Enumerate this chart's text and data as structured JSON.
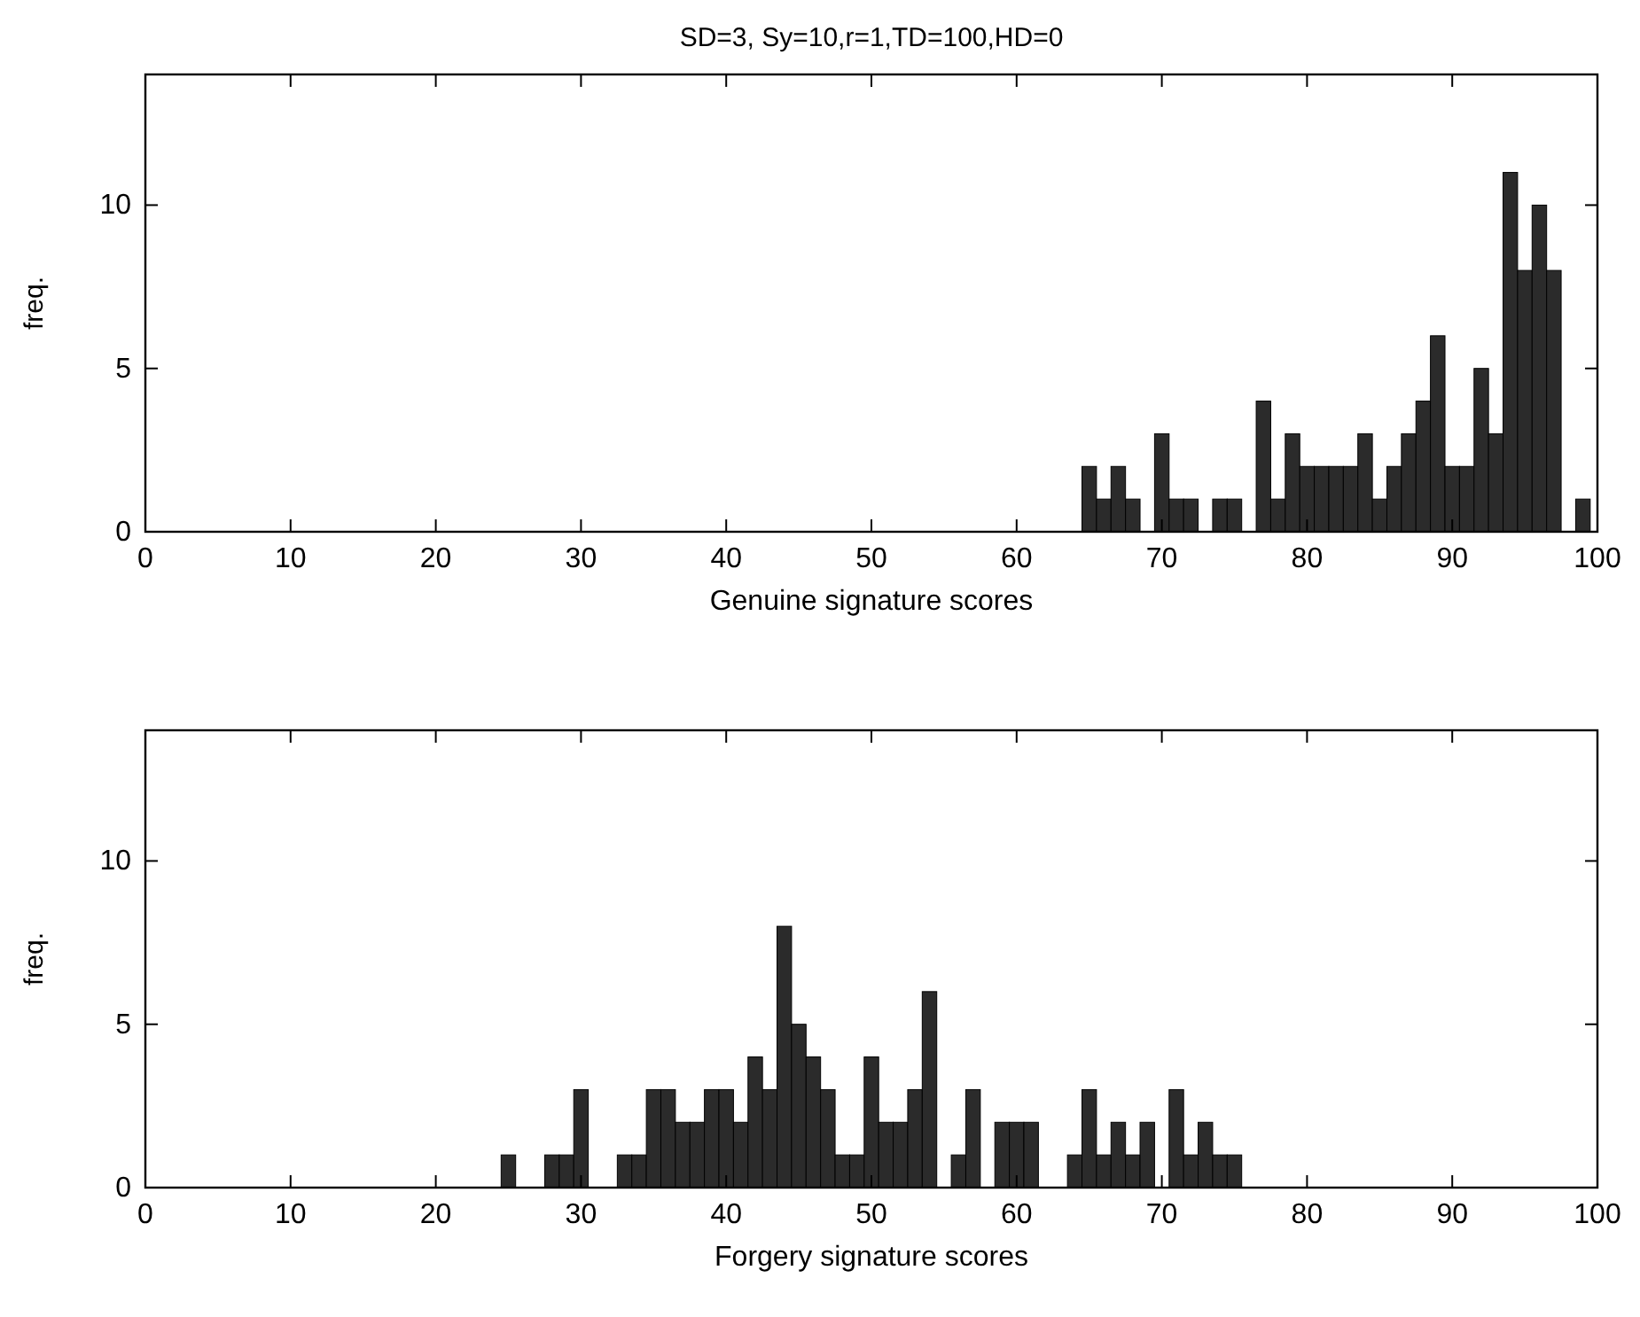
{
  "chart_data": [
    {
      "type": "histogram",
      "title": "SD=3, Sy=10,r=1,TD=100,HD=0",
      "xlabel": "Genuine signature scores",
      "ylabel": "freq.",
      "color": "#2b2b2b",
      "xlim": [
        0,
        100
      ],
      "ylim": [
        0,
        14
      ],
      "xticks": [
        0,
        10,
        20,
        30,
        40,
        50,
        60,
        70,
        80,
        90,
        100
      ],
      "yticks": [
        0,
        5,
        10
      ],
      "grid": false,
      "bins": [
        64.5,
        65.5,
        66.5,
        67.5,
        68.5,
        69.5,
        70.5,
        71.5,
        72.5,
        73.5,
        74.5,
        75.5,
        76.5,
        77.5,
        78.5,
        79.5,
        80.5,
        81.5,
        82.5,
        83.5,
        84.5,
        85.5,
        86.5,
        87.5,
        88.5,
        89.5,
        90.5,
        91.5,
        92.5,
        93.5,
        94.5,
        95.5,
        96.5,
        97.5,
        98.5,
        99.5
      ],
      "values": [
        2,
        1,
        2,
        1,
        0,
        3,
        1,
        1,
        0,
        1,
        1,
        0,
        4,
        1,
        3,
        2,
        2,
        2,
        2,
        3,
        1,
        2,
        3,
        4,
        6,
        2,
        2,
        5,
        3,
        11,
        8,
        10,
        8,
        0,
        1
      ]
    },
    {
      "type": "histogram",
      "xlabel": "Forgery signature scores",
      "ylabel": "freq.",
      "color": "#2b2b2b",
      "xlim": [
        0,
        100
      ],
      "ylim": [
        0,
        14
      ],
      "xticks": [
        0,
        10,
        20,
        30,
        40,
        50,
        60,
        70,
        80,
        90,
        100
      ],
      "yticks": [
        0,
        5,
        10
      ],
      "grid": false,
      "bins": [
        24.5,
        25.5,
        26.5,
        27.5,
        28.5,
        29.5,
        30.5,
        31.5,
        32.5,
        33.5,
        34.5,
        35.5,
        36.5,
        37.5,
        38.5,
        39.5,
        40.5,
        41.5,
        42.5,
        43.5,
        44.5,
        45.5,
        46.5,
        47.5,
        48.5,
        49.5,
        50.5,
        51.5,
        52.5,
        53.5,
        54.5,
        55.5,
        56.5,
        57.5,
        58.5,
        59.5,
        60.5,
        61.5,
        62.5,
        63.5,
        64.5,
        65.5,
        66.5,
        67.5,
        68.5,
        69.5,
        70.5,
        71.5,
        72.5,
        73.5,
        74.5,
        75.5
      ],
      "values": [
        1,
        0,
        0,
        1,
        1,
        3,
        0,
        0,
        1,
        1,
        3,
        3,
        2,
        2,
        3,
        3,
        2,
        4,
        3,
        8,
        5,
        4,
        3,
        1,
        1,
        4,
        2,
        2,
        3,
        6,
        0,
        1,
        3,
        0,
        2,
        2,
        2,
        0,
        0,
        1,
        3,
        1,
        2,
        1,
        2,
        0,
        3,
        1,
        2,
        1,
        1
      ]
    }
  ]
}
